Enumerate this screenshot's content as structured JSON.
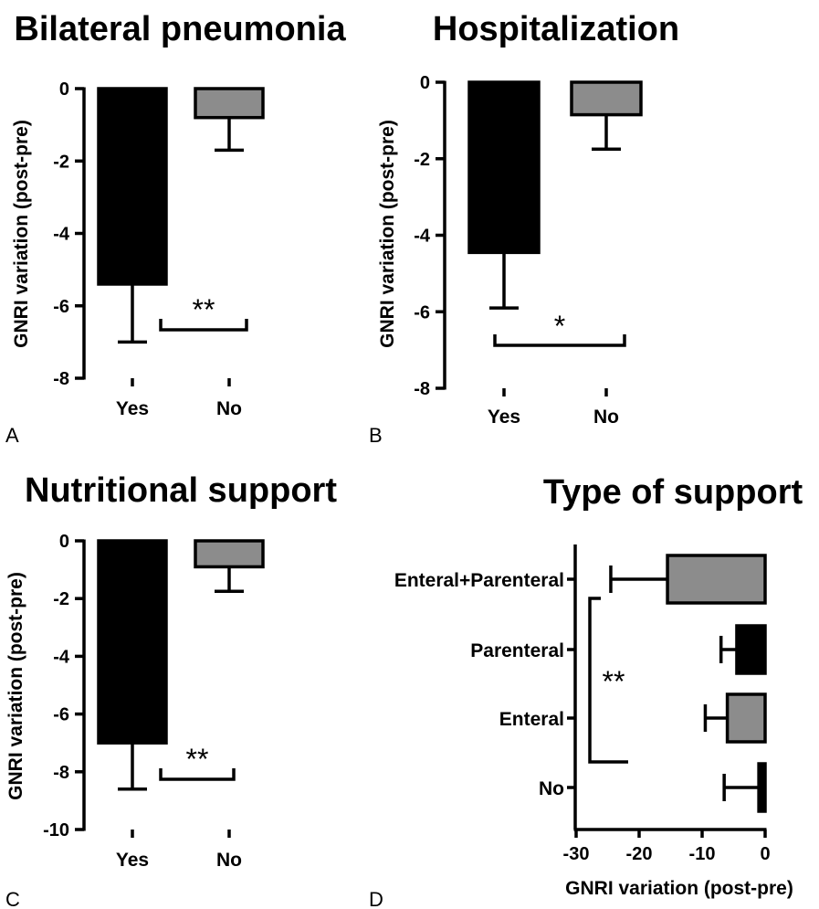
{
  "chart_data": [
    {
      "panel": "A",
      "type": "bar",
      "title": "Bilateral pneumonia",
      "ylabel": "GNRI variation (post-pre)",
      "xlabel": "",
      "categories": [
        "Yes",
        "No"
      ],
      "values": [
        -5.4,
        -0.8
      ],
      "error": [
        1.6,
        0.9
      ],
      "colors": [
        "#000000",
        "#8c8c8c"
      ],
      "ylim": [
        -8,
        0
      ],
      "yticks": [
        0,
        -2,
        -4,
        -6,
        -8
      ],
      "significance": "**"
    },
    {
      "panel": "B",
      "type": "bar",
      "title": "Hospitalization",
      "ylabel": "GNRI variation (post-pre)",
      "xlabel": "",
      "categories": [
        "Yes",
        "No"
      ],
      "values": [
        -4.45,
        -0.85
      ],
      "error": [
        1.45,
        0.9
      ],
      "colors": [
        "#000000",
        "#8c8c8c"
      ],
      "ylim": [
        -8,
        0
      ],
      "yticks": [
        0,
        -2,
        -4,
        -6,
        -8
      ],
      "significance": "*"
    },
    {
      "panel": "C",
      "type": "bar",
      "title": "Nutritional support",
      "ylabel": "GNRI variation (post-pre)",
      "xlabel": "",
      "categories": [
        "Yes",
        "No"
      ],
      "values": [
        -7.0,
        -0.9
      ],
      "error": [
        1.6,
        0.85
      ],
      "colors": [
        "#000000",
        "#8c8c8c"
      ],
      "ylim": [
        -10,
        0
      ],
      "yticks": [
        0,
        -2,
        -4,
        -6,
        -8,
        -10
      ],
      "significance": "**"
    },
    {
      "panel": "D",
      "type": "bar",
      "orientation": "horizontal",
      "title": "Type of support",
      "xlabel": "GNRI variation  (post-pre)",
      "ylabel": "",
      "categories": [
        "Enteral+Parenteral",
        "Parenteral",
        "Enteral",
        "No"
      ],
      "values": [
        -15.5,
        -4.5,
        -6.0,
        -1.0
      ],
      "error": [
        9.0,
        2.5,
        3.5,
        5.5
      ],
      "colors": [
        "#8c8c8c",
        "#000000",
        "#8c8c8c",
        "#000000"
      ],
      "xlim": [
        -30,
        0
      ],
      "xticks": [
        -30,
        -20,
        -10,
        0
      ],
      "significance": "**"
    }
  ]
}
